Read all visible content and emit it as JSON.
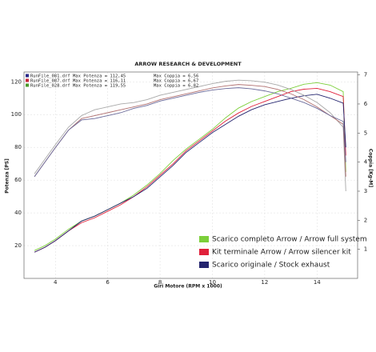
{
  "chart_data": {
    "type": "line",
    "title": "ARROW RESEARCH & DEVELOPMENT",
    "x_label": "Giri Motore (RPM x 1000)",
    "y_label": "Potenza [PS]",
    "y2_label": "Coppia [Kg-M]",
    "header": [
      {
        "color": "#2a2a8a",
        "text": "RunFile_081.drf Max Potenza = 112,45",
        "text2": "Max Coppia = 6,56"
      },
      {
        "color": "#c8283a",
        "text": "RunFile_087.drf Max Potenza = 116,11",
        "text2": "Max Coppia = 6,67"
      },
      {
        "color": "#4a9a2a",
        "text": "RunFile_028.drf Max Potenza = 119,55",
        "text2": "Max Coppia = 6,82"
      }
    ],
    "x": [
      3.2,
      3.6,
      4,
      4.5,
      5,
      5.5,
      6,
      6.5,
      7,
      7.5,
      8,
      8.5,
      9,
      9.5,
      10,
      10.5,
      11,
      11.5,
      12,
      12.5,
      13,
      13.5,
      14,
      14.5,
      15,
      15.1
    ],
    "xlim": [
      2.8,
      15.55
    ],
    "xticks": [
      4,
      6,
      8,
      10,
      12,
      14
    ],
    "ylim": [
      0,
      126
    ],
    "yticks": [
      20,
      40,
      60,
      80,
      100,
      120
    ],
    "y2lim": [
      0,
      7.1
    ],
    "y2ticks": [
      1,
      2,
      3,
      4,
      5,
      6,
      7
    ],
    "grid": true,
    "series": [
      {
        "name": "Scarico completo Arrow / Arrow full system",
        "color": "#7ccf3a",
        "values": [
          17,
          20,
          24,
          30,
          35,
          38,
          42,
          46,
          51,
          57,
          64,
          72,
          79,
          85,
          91,
          98,
          104,
          108,
          111,
          114,
          116,
          118.5,
          119.5,
          118,
          114,
          65
        ]
      },
      {
        "name": "Kit terminale Arrow / Arrow silencer kit",
        "color": "#e0203a",
        "values": [
          16,
          19,
          23,
          29,
          34,
          37,
          41,
          45,
          50,
          56,
          63,
          70,
          78,
          84,
          90,
          96,
          101,
          105,
          108,
          111,
          114,
          115.5,
          116,
          114,
          111,
          75
        ]
      },
      {
        "name": "Scarico originale / Stock exhaust",
        "color": "#24246e",
        "values": [
          16,
          19,
          23,
          29,
          35,
          38,
          42,
          46,
          50,
          55,
          62,
          69,
          77,
          83,
          89,
          94,
          99,
          103,
          106,
          108,
          110,
          111.5,
          112.4,
          110,
          107,
          80
        ]
      },
      {
        "color": "#a8a8a8",
        "axis": "y2",
        "values": [
          3.6,
          4.1,
          4.6,
          5.2,
          5.6,
          5.8,
          5.9,
          6.0,
          6.05,
          6.15,
          6.3,
          6.4,
          6.5,
          6.6,
          6.7,
          6.78,
          6.82,
          6.8,
          6.75,
          6.65,
          6.5,
          6.3,
          6.05,
          5.7,
          5.2,
          3.0
        ]
      },
      {
        "color": "#b07070",
        "axis": "y2",
        "values": [
          3.5,
          4.0,
          4.5,
          5.1,
          5.5,
          5.6,
          5.7,
          5.8,
          5.9,
          6.0,
          6.15,
          6.25,
          6.35,
          6.45,
          6.55,
          6.62,
          6.67,
          6.64,
          6.6,
          6.5,
          6.35,
          6.15,
          5.9,
          5.6,
          5.3,
          3.5
        ]
      },
      {
        "color": "#6a6a9a",
        "axis": "y2",
        "values": [
          3.5,
          4.0,
          4.5,
          5.1,
          5.45,
          5.5,
          5.6,
          5.7,
          5.85,
          5.95,
          6.1,
          6.2,
          6.3,
          6.4,
          6.48,
          6.53,
          6.56,
          6.52,
          6.45,
          6.35,
          6.2,
          6.05,
          5.85,
          5.6,
          5.4,
          4.0
        ]
      }
    ]
  }
}
